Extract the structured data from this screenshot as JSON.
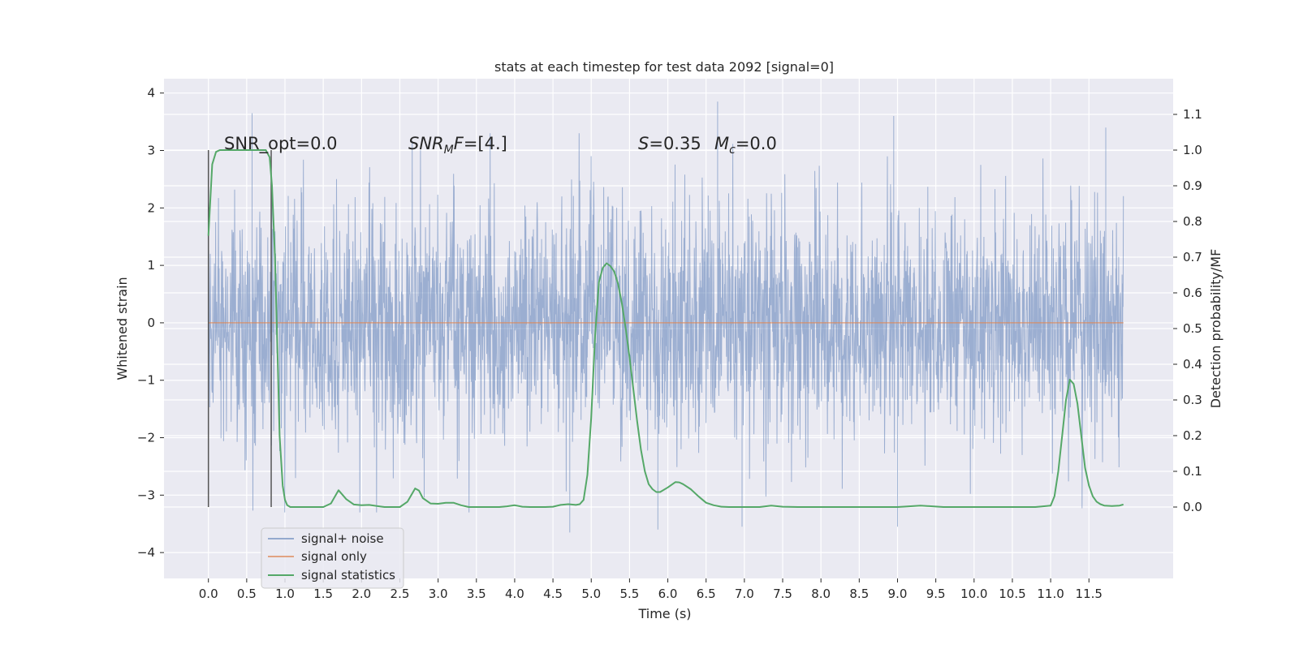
{
  "chart_data": {
    "type": "line",
    "title": "stats at each timestep for test data 2092 [signal=0]",
    "xlabel": "Time (s)",
    "ylabel_left": "Whitened strain",
    "ylabel_right": "Detection probability/MF",
    "xlim": [
      -0.58,
      12.6
    ],
    "ylim_left": [
      -4.45,
      4.25
    ],
    "ylim_right": [
      -0.2,
      1.2
    ],
    "x_ticks": [
      "0.0",
      "0.5",
      "1.0",
      "1.5",
      "2.0",
      "2.5",
      "3.0",
      "3.5",
      "4.0",
      "4.5",
      "5.0",
      "5.5",
      "6.0",
      "6.5",
      "7.0",
      "7.5",
      "8.0",
      "8.5",
      "9.0",
      "9.5",
      "10.0",
      "10.5",
      "11.0",
      "11.5"
    ],
    "y_ticks_left": [
      "−4",
      "−3",
      "−2",
      "−1",
      "0",
      "1",
      "2",
      "3",
      "4"
    ],
    "y_ticks_right": [
      "0.0",
      "0.1",
      "0.2",
      "0.3",
      "0.4",
      "0.5",
      "0.6",
      "0.7",
      "0.8",
      "0.9",
      "1.0",
      "1.1"
    ],
    "grid": true,
    "legend_position": "lower-left",
    "annotations": {
      "snr_opt": "SNR_opt=0.0",
      "snr_mf_prefix": "SNR",
      "snr_mf_sub": "M",
      "snr_mf_suffix": "F=[4.]",
      "s_prefix": "S",
      "s_value": "=0.35",
      "mc_prefix": "M",
      "mc_sub": "c",
      "mc_value": "=0.0"
    },
    "vertical_markers": [
      0.0,
      0.82
    ],
    "series": [
      {
        "name": "signal+ noise",
        "axis": "left",
        "color": "#4C72B0",
        "x_range": [
          0.0,
          11.95
        ],
        "envelope": "whitened Gaussian noise, typically within ±2.5, extremes about ±3.8",
        "spikes": [
          {
            "x": 0.57,
            "y": 3.65
          },
          {
            "x": 6.65,
            "y": 3.85
          },
          {
            "x": 8.95,
            "y": 3.6
          },
          {
            "x": 11.72,
            "y": 3.4
          },
          {
            "x": 4.72,
            "y": -3.65
          },
          {
            "x": 5.87,
            "y": -3.6
          },
          {
            "x": 9.0,
            "y": -3.55
          },
          {
            "x": 6.97,
            "y": -3.55
          }
        ]
      },
      {
        "name": "signal only",
        "axis": "left",
        "color": "#DD8452",
        "x": [
          0.0,
          11.95
        ],
        "y": [
          0.0,
          0.0
        ]
      },
      {
        "name": "signal statistics",
        "axis": "right",
        "color": "#55A868",
        "x": [
          0.0,
          0.05,
          0.1,
          0.15,
          0.2,
          0.3,
          0.4,
          0.5,
          0.6,
          0.7,
          0.75,
          0.8,
          0.83,
          0.87,
          0.9,
          0.93,
          0.97,
          1.0,
          1.03,
          1.07,
          1.1,
          1.2,
          1.3,
          1.4,
          1.5,
          1.6,
          1.7,
          1.8,
          1.9,
          2.0,
          2.1,
          2.2,
          2.3,
          2.4,
          2.5,
          2.6,
          2.7,
          2.75,
          2.8,
          2.9,
          3.0,
          3.1,
          3.2,
          3.3,
          3.4,
          3.5,
          3.6,
          3.7,
          3.8,
          3.9,
          4.0,
          4.1,
          4.2,
          4.3,
          4.4,
          4.5,
          4.6,
          4.7,
          4.8,
          4.85,
          4.9,
          4.95,
          5.0,
          5.05,
          5.1,
          5.15,
          5.2,
          5.25,
          5.3,
          5.35,
          5.4,
          5.45,
          5.5,
          5.55,
          5.6,
          5.65,
          5.7,
          5.75,
          5.8,
          5.85,
          5.9,
          6.0,
          6.1,
          6.15,
          6.2,
          6.3,
          6.4,
          6.5,
          6.6,
          6.7,
          6.8,
          7.0,
          7.2,
          7.35,
          7.5,
          7.7,
          8.0,
          8.3,
          8.6,
          9.0,
          9.3,
          9.6,
          10.0,
          10.4,
          10.8,
          11.0,
          11.05,
          11.1,
          11.15,
          11.2,
          11.25,
          11.3,
          11.35,
          11.4,
          11.45,
          11.5,
          11.55,
          11.6,
          11.65,
          11.7,
          11.8,
          11.9,
          11.95
        ],
        "y": [
          0.76,
          0.96,
          0.995,
          1.0,
          1.0,
          1.0,
          1.0,
          1.0,
          1.0,
          1.0,
          1.0,
          0.98,
          0.9,
          0.7,
          0.45,
          0.2,
          0.06,
          0.02,
          0.005,
          0.0,
          0.0,
          0.0,
          0.0,
          0.0,
          0.0,
          0.01,
          0.047,
          0.022,
          0.007,
          0.005,
          0.006,
          0.003,
          0.0,
          0.0,
          0.0,
          0.015,
          0.052,
          0.046,
          0.025,
          0.01,
          0.009,
          0.012,
          0.012,
          0.005,
          0.0,
          0.0,
          0.0,
          0.0,
          0.0,
          0.002,
          0.005,
          0.001,
          0.0,
          0.0,
          0.0,
          0.001,
          0.006,
          0.008,
          0.006,
          0.008,
          0.02,
          0.09,
          0.25,
          0.48,
          0.63,
          0.67,
          0.683,
          0.675,
          0.66,
          0.625,
          0.57,
          0.5,
          0.42,
          0.33,
          0.24,
          0.16,
          0.1,
          0.064,
          0.05,
          0.042,
          0.042,
          0.055,
          0.07,
          0.069,
          0.064,
          0.05,
          0.03,
          0.012,
          0.005,
          0.001,
          0.0,
          0.0,
          0.0,
          0.004,
          0.001,
          0.0,
          0.0,
          0.0,
          0.0,
          0.0,
          0.004,
          0.0,
          0.0,
          0.0,
          0.0,
          0.004,
          0.03,
          0.1,
          0.2,
          0.3,
          0.357,
          0.345,
          0.29,
          0.2,
          0.11,
          0.06,
          0.03,
          0.015,
          0.008,
          0.004,
          0.003,
          0.004,
          0.007
        ]
      }
    ]
  }
}
